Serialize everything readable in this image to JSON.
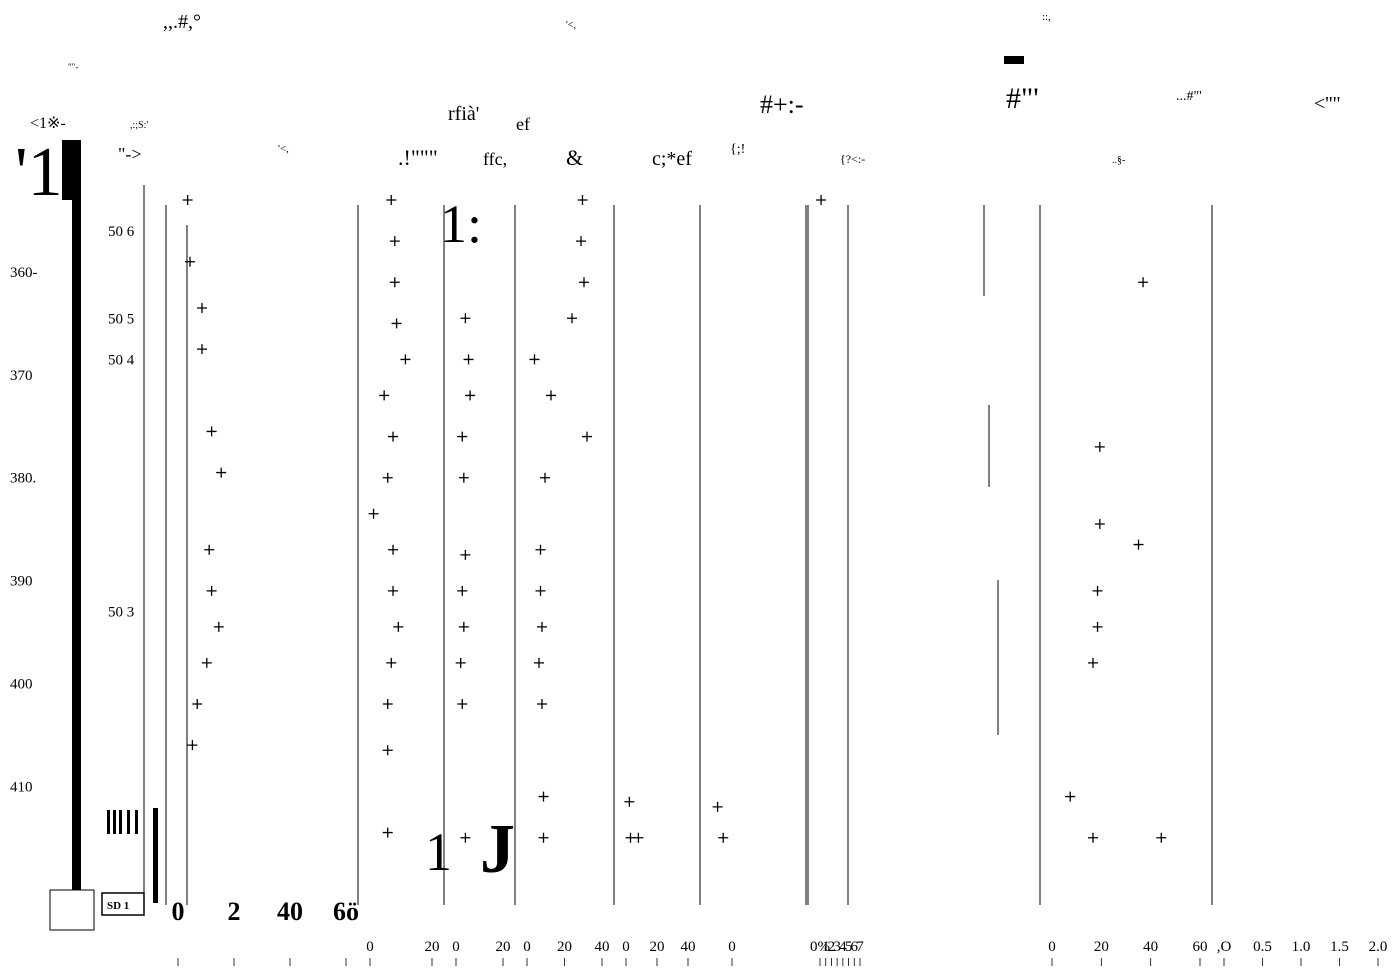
{
  "chart_data": {
    "type": "scatter",
    "subtype": "stratigraphic-depth-profile",
    "title": "",
    "legend": "none",
    "grid": false,
    "depth_axis": {
      "ticks": [
        {
          "label": "360-",
          "value": 360
        },
        {
          "label": "370",
          "value": 370
        },
        {
          "label": "380.",
          "value": 380
        },
        {
          "label": "390",
          "value": 390
        },
        {
          "label": "400",
          "value": 400
        },
        {
          "label": "410",
          "value": 410
        }
      ],
      "range": [
        353,
        423
      ],
      "inverted": true
    },
    "sample_labels": [
      {
        "label": "50 6",
        "depth": 356
      },
      {
        "label": "50 5",
        "depth": 364.5
      },
      {
        "label": "50 4",
        "depth": 368.5
      },
      {
        "label": "50 3",
        "depth": 393
      }
    ],
    "header_fragments": [
      ",,.#,°",
      "\"\"-",
      "<1※-",
      "'1'",
      "\"->",
      ",:;S:'",
      "'<,",
      ".!\"\"\"",
      "rfià'",
      "ef",
      "ffc,",
      "&",
      "c;*ef",
      "#+:-",
      "#\"'",
      "...#\"'",
      "<''\"",
      "..§-",
      "{;!",
      "{?<:-",
      "::,",
      "'<,"
    ],
    "panels": [
      {
        "xticks": [
          "0",
          "2",
          "40",
          "6ö"
        ],
        "xlim": [
          0,
          70
        ],
        "points": [
          [
            4,
            353
          ],
          [
            5,
            359
          ],
          [
            10,
            363.5
          ],
          [
            10,
            367.5
          ],
          [
            14,
            375.5
          ],
          [
            18,
            379.5
          ],
          [
            13,
            387
          ],
          [
            14,
            391
          ],
          [
            17,
            394.5
          ],
          [
            12,
            398
          ],
          [
            8,
            402
          ],
          [
            6,
            406
          ]
        ]
      },
      {
        "xticks": [
          "0",
          "20"
        ],
        "xlim": [
          0,
          35
        ],
        "points": [
          [
            12,
            353
          ],
          [
            14,
            357
          ],
          [
            14,
            361
          ],
          [
            15,
            365
          ],
          [
            20,
            368.5
          ],
          [
            8,
            372
          ],
          [
            13,
            376
          ],
          [
            10,
            380
          ],
          [
            2,
            383.5
          ],
          [
            13,
            387
          ],
          [
            13,
            391
          ],
          [
            16,
            394.5
          ],
          [
            12,
            398
          ],
          [
            10,
            402
          ],
          [
            10,
            406.5
          ],
          [
            10,
            414.5
          ]
        ]
      },
      {
        "xticks": [
          "0",
          "20"
        ],
        "xlim": [
          0,
          30
        ],
        "points": [
          [
            6,
            364.5
          ],
          [
            8,
            368.5
          ],
          [
            9,
            372
          ],
          [
            4,
            376
          ],
          [
            5,
            380
          ],
          [
            6,
            387.5
          ],
          [
            4,
            391
          ],
          [
            5,
            394.5
          ],
          [
            3,
            398
          ],
          [
            4,
            402
          ],
          [
            6,
            415
          ]
        ]
      },
      {
        "xticks": [
          "0",
          "20",
          "40"
        ],
        "xlim": [
          0,
          50
        ],
        "points": [
          [
            37,
            353
          ],
          [
            36,
            357
          ],
          [
            38,
            361
          ],
          [
            30,
            364.5
          ],
          [
            5,
            368.5
          ],
          [
            16,
            372
          ],
          [
            40,
            376
          ],
          [
            12,
            380
          ],
          [
            9,
            387
          ],
          [
            9,
            391
          ],
          [
            10,
            394.5
          ],
          [
            8,
            398
          ],
          [
            10,
            402
          ],
          [
            11,
            411
          ],
          [
            11,
            415
          ]
        ]
      },
      {
        "xticks": [
          "0",
          "20",
          "40"
        ],
        "xlim": [
          -5,
          50
        ],
        "points": [
          [
            -2,
            411.5
          ],
          [
            6,
            415
          ],
          [
            -1,
            415
          ]
        ]
      },
      {
        "xticks": [
          "0"
        ],
        "xlim": [
          0,
          15
        ],
        "points": [
          [
            1,
            412
          ],
          [
            2,
            415
          ]
        ]
      },
      {
        "xticks": [
          "0%",
          "1",
          "2",
          "3",
          "4",
          "5",
          "6",
          "7"
        ],
        "xlim": [
          0,
          7.5
        ],
        "points": [
          [
            0.2,
            353
          ]
        ]
      },
      {
        "xticks": [
          "0",
          "20",
          "40",
          "60"
        ],
        "xlim": [
          0,
          65
        ],
        "points": [
          [
            40,
            361
          ],
          [
            21,
            377
          ],
          [
            21,
            384.5
          ],
          [
            38,
            386.5
          ],
          [
            20,
            391
          ],
          [
            20,
            394.5
          ],
          [
            18,
            398
          ],
          [
            8,
            411
          ],
          [
            48,
            415
          ],
          [
            18,
            415
          ]
        ]
      },
      {
        "xticks": [
          ",O",
          "0.5",
          "1.0",
          "1.5",
          "2.0"
        ],
        "xlim": [
          0,
          2.1
        ],
        "points": []
      }
    ]
  }
}
